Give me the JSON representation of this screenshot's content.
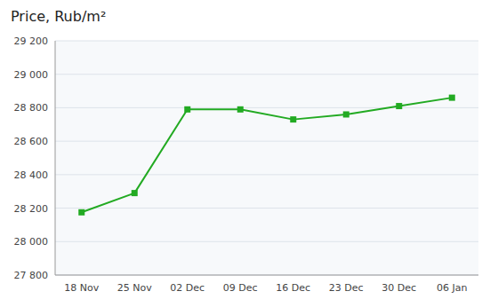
{
  "chart_data": {
    "type": "line",
    "title": "Price, Rub/m²",
    "categories": [
      "18 Nov",
      "25 Nov",
      "02 Dec",
      "09 Dec",
      "16 Dec",
      "23 Dec",
      "30 Dec",
      "06 Jan"
    ],
    "values": [
      28175,
      28290,
      28790,
      28790,
      28730,
      28760,
      28810,
      28860
    ],
    "color": "#22aa22",
    "marker": "square",
    "grid": true,
    "ylim": [
      27800,
      29200
    ],
    "yticks": [
      {
        "value": 27800,
        "label": "27 800"
      },
      {
        "value": 28000,
        "label": "28 000"
      },
      {
        "value": 28200,
        "label": "28 200"
      },
      {
        "value": 28400,
        "label": "28 400"
      },
      {
        "value": 28600,
        "label": "28 600"
      },
      {
        "value": 28800,
        "label": "28 800"
      },
      {
        "value": 29000,
        "label": "29 000"
      },
      {
        "value": 29200,
        "label": "29 200"
      }
    ]
  }
}
